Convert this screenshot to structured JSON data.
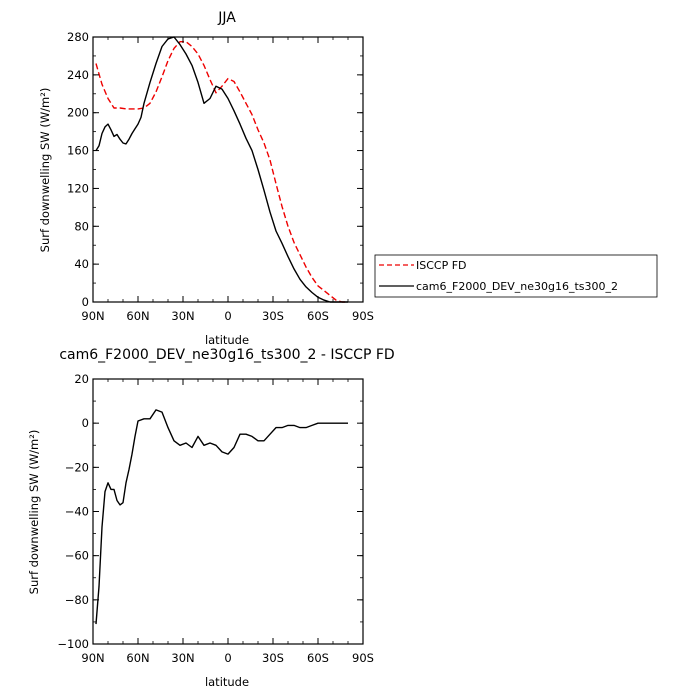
{
  "chart_data": [
    {
      "type": "line",
      "title": "JJA",
      "xlabel": "latitude",
      "ylabel": "Surf downwelling SW (W/m²)",
      "xlim": [
        90,
        -90
      ],
      "ylim": [
        0,
        280
      ],
      "x_ticks": [
        "90N",
        "60N",
        "30N",
        "0",
        "30S",
        "60S",
        "90S"
      ],
      "y_ticks": [
        "0",
        "40",
        "80",
        "120",
        "160",
        "200",
        "240",
        "280"
      ],
      "grid": false,
      "legend_position": "right, outside plot",
      "series": [
        {
          "name": "ISCCP FD",
          "color": "#ee0000",
          "dash": "dashed",
          "x": [
            88,
            84,
            80,
            76,
            72,
            68,
            64,
            60,
            56,
            52,
            48,
            44,
            40,
            36,
            32,
            28,
            24,
            20,
            16,
            12,
            8,
            4,
            0,
            -4,
            -8,
            -12,
            -16,
            -20,
            -24,
            -28,
            -32,
            -36,
            -40,
            -44,
            -48,
            -52,
            -56,
            -60,
            -64,
            -68,
            -72,
            -76,
            -80
          ],
          "y": [
            252,
            230,
            215,
            205,
            205,
            204,
            204,
            204,
            205,
            210,
            222,
            238,
            255,
            268,
            275,
            275,
            270,
            262,
            250,
            235,
            221,
            228,
            236,
            233,
            222,
            210,
            198,
            182,
            168,
            150,
            125,
            101,
            80,
            63,
            50,
            37,
            26,
            17,
            12,
            7,
            2,
            0,
            0
          ]
        },
        {
          "name": "cam6_F2000_DEV_ne30g16_ts300_2",
          "color": "#000000",
          "dash": "solid",
          "x": [
            88,
            86,
            84,
            82,
            80,
            78,
            76,
            74,
            72,
            70,
            68,
            66,
            64,
            62,
            60,
            58,
            56,
            52,
            48,
            44,
            40,
            36,
            32,
            28,
            24,
            20,
            16,
            12,
            8,
            4,
            0,
            -4,
            -8,
            -12,
            -16,
            -20,
            -24,
            -28,
            -32,
            -36,
            -40,
            -44,
            -48,
            -52,
            -56,
            -60,
            -64,
            -68,
            -72,
            -76,
            -80
          ],
          "y": [
            160,
            165,
            178,
            185,
            188,
            182,
            175,
            177,
            172,
            168,
            167,
            172,
            178,
            183,
            188,
            195,
            210,
            232,
            252,
            270,
            278,
            280,
            272,
            262,
            250,
            232,
            210,
            215,
            228,
            225,
            215,
            202,
            188,
            173,
            160,
            140,
            118,
            95,
            75,
            62,
            48,
            35,
            24,
            16,
            10,
            5,
            2,
            0,
            0,
            0,
            0
          ]
        }
      ]
    },
    {
      "type": "line",
      "title": "cam6_F2000_DEV_ne30g16_ts300_2 - ISCCP FD",
      "xlabel": "latitude",
      "ylabel": "Surf downwelling SW (W/m²)",
      "xlim": [
        90,
        -90
      ],
      "ylim": [
        -100,
        20
      ],
      "x_ticks": [
        "90N",
        "60N",
        "30N",
        "0",
        "30S",
        "60S",
        "90S"
      ],
      "y_ticks": [
        "−100",
        "−80",
        "−60",
        "−40",
        "−20",
        "0",
        "20"
      ],
      "grid": false,
      "series": [
        {
          "color": "#000000",
          "dash": "solid",
          "x": [
            88,
            86,
            84,
            82,
            80,
            78,
            76,
            74,
            72,
            70,
            68,
            66,
            64,
            62,
            60,
            56,
            52,
            48,
            44,
            40,
            36,
            32,
            28,
            24,
            20,
            16,
            12,
            8,
            4,
            0,
            -4,
            -8,
            -12,
            -16,
            -20,
            -24,
            -28,
            -32,
            -36,
            -40,
            -44,
            -48,
            -52,
            -56,
            -60,
            -64,
            -68,
            -72,
            -76,
            -80
          ],
          "y": [
            -91,
            -74,
            -47,
            -31,
            -27,
            -30,
            -30,
            -35,
            -37,
            -36,
            -27,
            -21,
            -14,
            -6,
            1,
            2,
            2,
            6,
            5,
            -2,
            -8,
            -10,
            -9,
            -11,
            -6,
            -10,
            -9,
            -10,
            -13,
            -14,
            -11,
            -5,
            -5,
            -6,
            -8,
            -8,
            -5,
            -2,
            -2,
            -1,
            -1,
            -2,
            -2,
            -1,
            0,
            0,
            0,
            0,
            0,
            0
          ]
        }
      ]
    }
  ]
}
